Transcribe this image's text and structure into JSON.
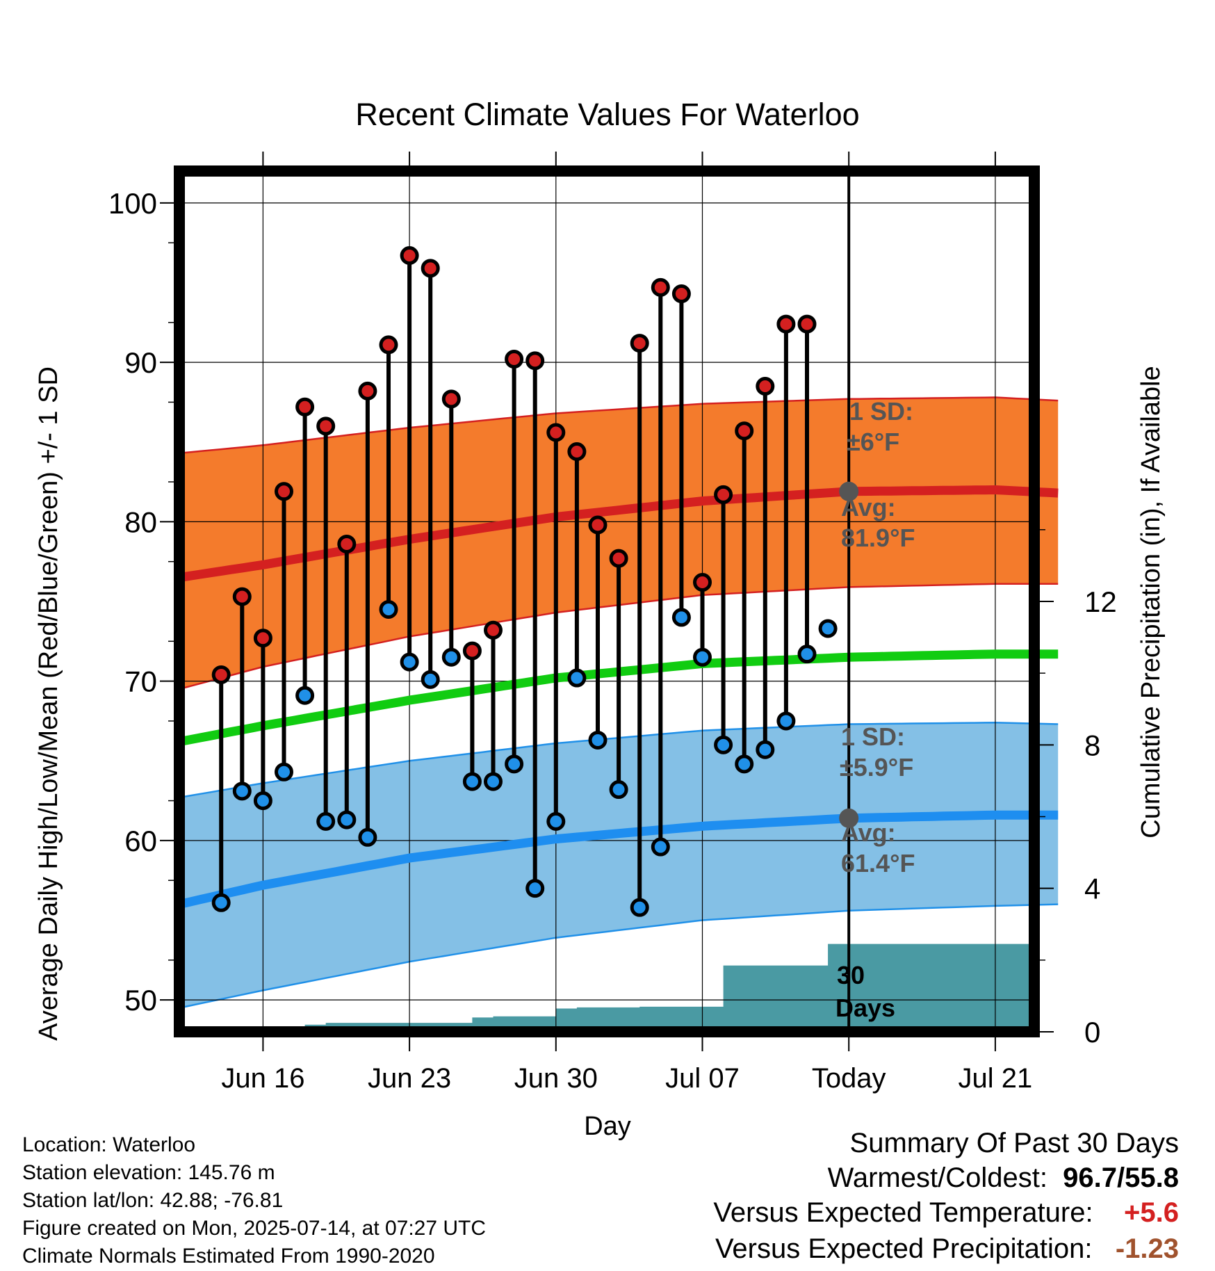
{
  "chart_data": {
    "type": "line",
    "title": "Recent Climate Values For Waterloo",
    "xlabel": "Day",
    "ylabel": "Average Daily High/Low/Mean (Red/Blue/Green) +/- 1 SD",
    "y2label": "Cumulative Precipitation (in), If Available",
    "ylim": [
      48,
      102
    ],
    "y2lim": [
      0,
      24
    ],
    "yticks": [
      "50",
      "60",
      "70",
      "80",
      "90",
      "100"
    ],
    "y2ticks": [
      "0",
      "4",
      "8",
      "12"
    ],
    "x_range": [
      "2025-06-12",
      "2025-07-24"
    ],
    "xticks": [
      {
        "date": "2025-06-16",
        "label": "Jun 16"
      },
      {
        "date": "2025-06-23",
        "label": "Jun 23"
      },
      {
        "date": "2025-06-30",
        "label": "Jun 30"
      },
      {
        "date": "2025-07-07",
        "label": "Jul 07"
      },
      {
        "date": "2025-07-14",
        "label": "Today"
      },
      {
        "date": "2025-07-21",
        "label": "Jul 21"
      }
    ],
    "today": "2025-07-14",
    "grid": true,
    "series": [
      {
        "name": "High",
        "color": "#d42020",
        "x": [
          "2025-06-14",
          "2025-06-15",
          "2025-06-16",
          "2025-06-17",
          "2025-06-18",
          "2025-06-19",
          "2025-06-20",
          "2025-06-21",
          "2025-06-22",
          "2025-06-23",
          "2025-06-24",
          "2025-06-25",
          "2025-06-26",
          "2025-06-27",
          "2025-06-28",
          "2025-06-29",
          "2025-06-30",
          "2025-07-01",
          "2025-07-02",
          "2025-07-03",
          "2025-07-04",
          "2025-07-05",
          "2025-07-06",
          "2025-07-07",
          "2025-07-08",
          "2025-07-09",
          "2025-07-10",
          "2025-07-11",
          "2025-07-12",
          "2025-07-13"
        ],
        "values": [
          70.4,
          75.3,
          72.7,
          81.9,
          87.2,
          86.0,
          78.6,
          88.2,
          91.1,
          96.7,
          95.9,
          87.7,
          71.9,
          73.2,
          90.2,
          90.1,
          85.6,
          84.4,
          79.8,
          77.7,
          91.2,
          94.7,
          94.3,
          76.2,
          81.7,
          85.7,
          88.5,
          92.4,
          92.4,
          null
        ]
      },
      {
        "name": "Low",
        "color": "#2090e8",
        "x": [
          "2025-06-14",
          "2025-06-15",
          "2025-06-16",
          "2025-06-17",
          "2025-06-18",
          "2025-06-19",
          "2025-06-20",
          "2025-06-21",
          "2025-06-22",
          "2025-06-23",
          "2025-06-24",
          "2025-06-25",
          "2025-06-26",
          "2025-06-27",
          "2025-06-28",
          "2025-06-29",
          "2025-06-30",
          "2025-07-01",
          "2025-07-02",
          "2025-07-03",
          "2025-07-04",
          "2025-07-05",
          "2025-07-06",
          "2025-07-07",
          "2025-07-08",
          "2025-07-09",
          "2025-07-10",
          "2025-07-11",
          "2025-07-12",
          "2025-07-13"
        ],
        "values": [
          56.1,
          63.1,
          62.5,
          64.3,
          69.1,
          61.2,
          61.3,
          60.2,
          74.5,
          71.2,
          70.1,
          71.5,
          63.7,
          63.7,
          64.8,
          57.0,
          61.2,
          70.2,
          66.3,
          63.2,
          55.8,
          59.6,
          74.0,
          71.5,
          66.0,
          64.8,
          65.7,
          67.5,
          71.7,
          73.3
        ]
      }
    ],
    "normals": {
      "dates": [
        "2025-06-12",
        "2025-06-16",
        "2025-06-23",
        "2025-06-30",
        "2025-07-07",
        "2025-07-14",
        "2025-07-21",
        "2025-07-24"
      ],
      "high_avg": [
        76.5,
        77.3,
        78.9,
        80.3,
        81.3,
        81.9,
        82.0,
        81.8
      ],
      "high_upper": [
        84.3,
        84.8,
        85.9,
        86.8,
        87.4,
        87.7,
        87.8,
        87.6
      ],
      "high_lower": [
        69.5,
        70.9,
        72.8,
        74.3,
        75.4,
        75.9,
        76.1,
        76.1
      ],
      "mean_avg": [
        66.2,
        67.2,
        68.8,
        70.2,
        71.1,
        71.5,
        71.7,
        71.7
      ],
      "low_avg": [
        56.0,
        57.2,
        58.9,
        60.1,
        60.9,
        61.4,
        61.6,
        61.6
      ],
      "low_upper": [
        62.7,
        63.6,
        65.0,
        66.1,
        66.9,
        67.3,
        67.4,
        67.3
      ],
      "low_lower": [
        49.5,
        50.6,
        52.4,
        53.9,
        55.0,
        55.6,
        55.9,
        56.0
      ]
    },
    "precipitation": {
      "color": "#4a9aa3",
      "x": [
        "2025-06-17",
        "2025-06-18",
        "2025-06-19",
        "2025-06-20",
        "2025-06-21",
        "2025-06-22",
        "2025-06-23",
        "2025-06-24",
        "2025-06-25",
        "2025-06-26",
        "2025-06-27",
        "2025-06-28",
        "2025-06-29",
        "2025-06-30",
        "2025-07-01",
        "2025-07-02",
        "2025-07-03",
        "2025-07-04",
        "2025-07-05",
        "2025-07-06",
        "2025-07-07",
        "2025-07-08",
        "2025-07-09",
        "2025-07-10",
        "2025-07-11",
        "2025-07-12",
        "2025-07-13",
        "2025-07-14"
      ],
      "values": [
        0.0,
        0.2,
        0.25,
        0.25,
        0.25,
        0.25,
        0.25,
        0.25,
        0.25,
        0.4,
        0.43,
        0.43,
        0.43,
        0.65,
        0.68,
        0.68,
        0.68,
        0.7,
        0.7,
        0.7,
        0.7,
        1.85,
        1.85,
        1.85,
        1.85,
        1.85,
        2.45,
        2.45
      ]
    },
    "annotations": {
      "high_sd_line1": "1 SD:",
      "high_sd_line2": "±6°F",
      "high_avg_line1": "Avg:",
      "high_avg_line2": "81.9°F",
      "low_sd_line1": "1 SD:",
      "low_sd_line2": "±5.9°F",
      "low_avg_line1": "Avg:",
      "low_avg_line2": "61.4°F",
      "days_line1": "30",
      "days_line2": "Days"
    }
  },
  "footer": {
    "location": "Location: Waterloo",
    "elevation": "Station elevation: 145.76 m",
    "latlon": "Station lat/lon: 42.88; -76.81",
    "created": "Figure created on Mon, 2025-07-14, at 07:27 UTC",
    "normals": "Climate Normals Estimated From 1990-2020"
  },
  "summary": {
    "title": "Summary Of Past 30 Days",
    "warm_label": "Warmest/Coldest:",
    "warm_value": "96.7/55.8",
    "temp_label": "Versus Expected Temperature:",
    "temp_value": "+5.6",
    "temp_color": "#d42020",
    "precip_label": "Versus Expected Precipitation:",
    "precip_value": "-1.23",
    "precip_color": "#a0522d"
  }
}
